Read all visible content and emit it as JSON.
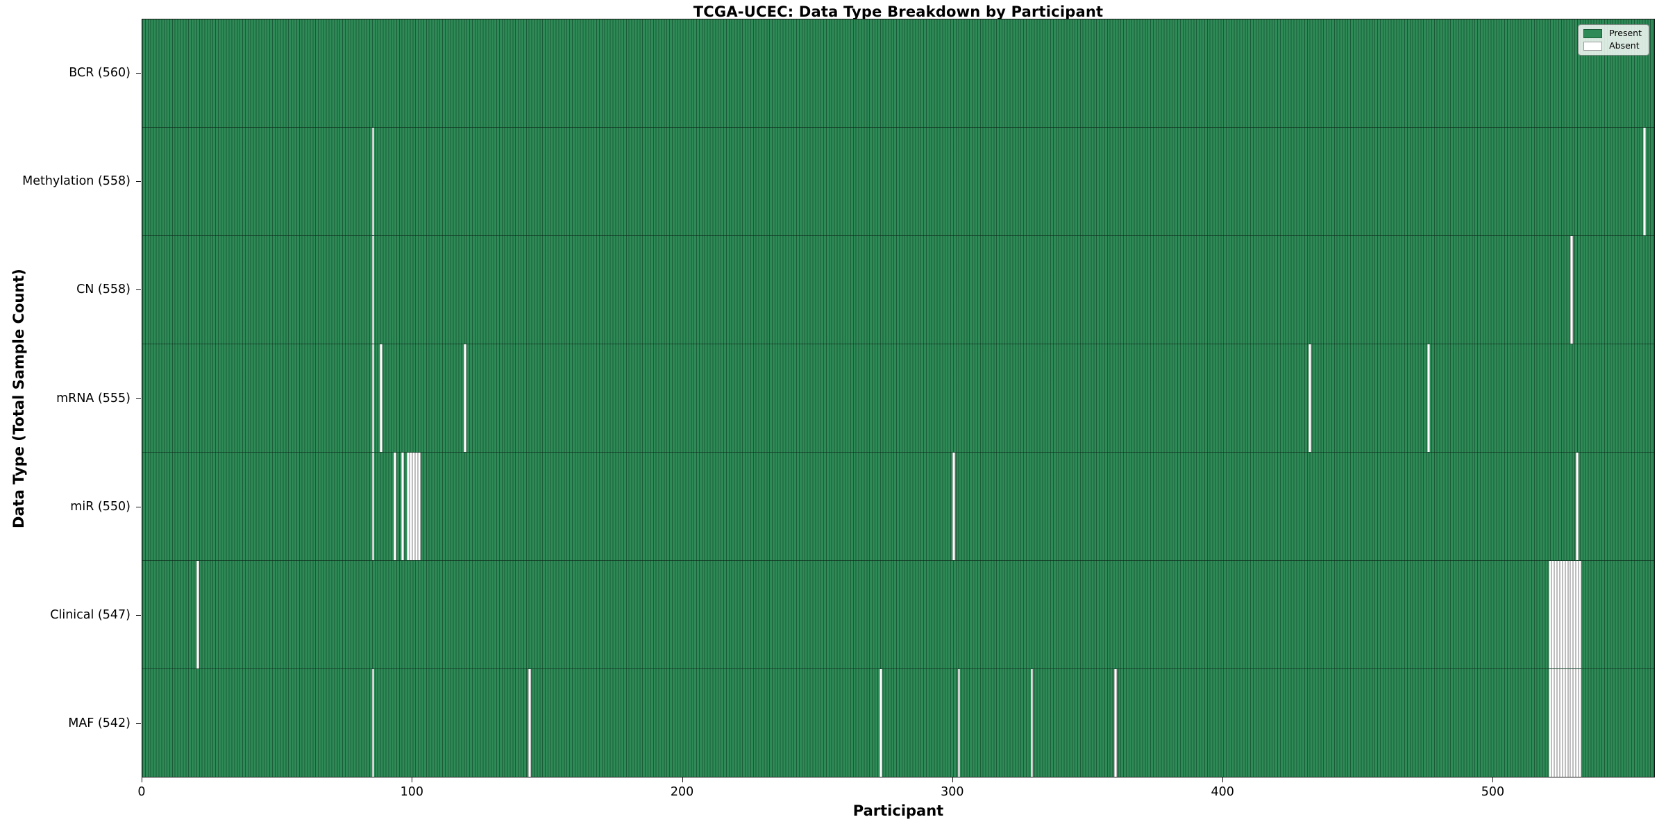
{
  "chart_data": {
    "type": "heatmap",
    "title": "TCGA-UCEC: Data Type Breakdown by Participant",
    "xlabel": "Participant",
    "ylabel": "Data Type (Total Sample Count)",
    "x_ticks": [
      0,
      100,
      200,
      300,
      400,
      500
    ],
    "x_range": [
      0,
      560
    ],
    "n_participants": 560,
    "grid": false,
    "legend_position": "upper right",
    "colors": {
      "present": "#2e8b57",
      "present_edge": "rgba(0,25,12,0.42)",
      "absent": "#ffffff",
      "absent_edge": "#bdbdbd"
    },
    "legend": [
      {
        "label": "Present",
        "color": "#2e8b57",
        "edge": "#1b5e3b"
      },
      {
        "label": "Absent",
        "color": "#ffffff",
        "edge": "#9a9a9a"
      }
    ],
    "rows": [
      {
        "label": "BCR (560)",
        "data_type": "BCR",
        "total": 560,
        "absent_participants": []
      },
      {
        "label": "Methylation (558)",
        "data_type": "Methylation",
        "total": 558,
        "absent_participants": [
          85,
          556
        ]
      },
      {
        "label": "CN (558)",
        "data_type": "CN",
        "total": 558,
        "absent_participants": [
          85,
          529
        ]
      },
      {
        "label": "mRNA (555)",
        "data_type": "mRNA",
        "total": 555,
        "absent_participants": [
          85,
          88,
          119,
          432,
          476
        ]
      },
      {
        "label": "miR (550)",
        "data_type": "miR",
        "total": 550,
        "absent_participants": [
          85,
          93,
          96,
          98,
          99,
          100,
          101,
          102,
          300,
          531
        ]
      },
      {
        "label": "Clinical (547)",
        "data_type": "Clinical",
        "total": 547,
        "absent_participants": [
          20,
          521,
          522,
          523,
          524,
          525,
          526,
          527,
          528,
          529,
          530,
          531,
          532
        ]
      },
      {
        "label": "MAF (542)",
        "data_type": "MAF",
        "total": 542,
        "absent_participants": [
          85,
          143,
          273,
          302,
          329,
          360,
          521,
          522,
          523,
          524,
          525,
          526,
          527,
          528,
          529,
          530,
          531,
          532
        ]
      }
    ]
  }
}
